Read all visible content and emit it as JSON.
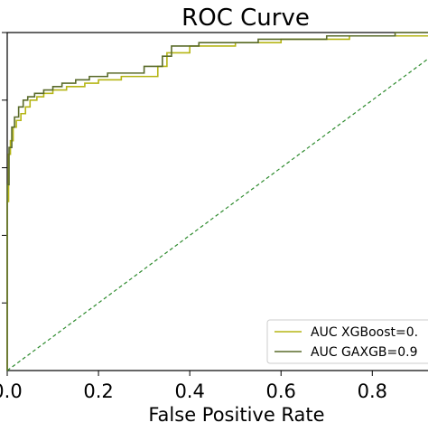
{
  "chart_data": {
    "type": "line",
    "title": "ROC Curve",
    "xlabel": "False Positive Rate",
    "ylabel": "",
    "xlim": [
      0.0,
      0.93
    ],
    "ylim": [
      0.0,
      1.0
    ],
    "x_ticks": [
      0.0,
      0.2,
      0.4,
      0.6,
      0.8
    ],
    "x_tick_labels": [
      "0.0",
      "0.2",
      "0.4",
      "0.6",
      "0.8"
    ],
    "y_ticks": [
      0.2,
      0.4,
      0.6,
      0.8,
      1.0
    ],
    "grid": false,
    "legend_position": "lower-right",
    "series": [
      {
        "name": "AUC XGBoost=0.",
        "color": "#b5b515",
        "x": [
          0.0,
          0.0,
          0.003,
          0.003,
          0.007,
          0.007,
          0.013,
          0.013,
          0.02,
          0.02,
          0.03,
          0.03,
          0.04,
          0.04,
          0.05,
          0.05,
          0.065,
          0.065,
          0.08,
          0.08,
          0.1,
          0.1,
          0.13,
          0.13,
          0.17,
          0.17,
          0.2,
          0.2,
          0.25,
          0.25,
          0.33,
          0.33,
          0.35,
          0.35,
          0.4,
          0.4,
          0.5,
          0.5,
          0.6,
          0.6,
          0.75,
          0.75,
          0.93
        ],
        "y": [
          0.0,
          0.5,
          0.5,
          0.64,
          0.64,
          0.68,
          0.68,
          0.72,
          0.72,
          0.74,
          0.74,
          0.76,
          0.76,
          0.78,
          0.78,
          0.8,
          0.8,
          0.81,
          0.81,
          0.82,
          0.82,
          0.83,
          0.83,
          0.84,
          0.84,
          0.85,
          0.85,
          0.86,
          0.86,
          0.87,
          0.87,
          0.9,
          0.9,
          0.94,
          0.94,
          0.96,
          0.96,
          0.97,
          0.97,
          0.98,
          0.98,
          0.99,
          0.99
        ]
      },
      {
        "name": "AUC GAXGB=0.9",
        "color": "#5a6b2a",
        "x": [
          0.0,
          0.0,
          0.004,
          0.004,
          0.01,
          0.01,
          0.016,
          0.016,
          0.025,
          0.025,
          0.035,
          0.035,
          0.045,
          0.045,
          0.06,
          0.06,
          0.08,
          0.08,
          0.1,
          0.1,
          0.12,
          0.12,
          0.15,
          0.15,
          0.18,
          0.18,
          0.22,
          0.22,
          0.3,
          0.3,
          0.34,
          0.34,
          0.36,
          0.36,
          0.42,
          0.42,
          0.55,
          0.55,
          0.7,
          0.7,
          0.85,
          0.85,
          0.93
        ],
        "y": [
          0.0,
          0.55,
          0.55,
          0.66,
          0.66,
          0.72,
          0.72,
          0.75,
          0.75,
          0.78,
          0.78,
          0.8,
          0.8,
          0.81,
          0.81,
          0.82,
          0.82,
          0.83,
          0.83,
          0.84,
          0.84,
          0.85,
          0.85,
          0.86,
          0.86,
          0.87,
          0.87,
          0.88,
          0.88,
          0.9,
          0.9,
          0.93,
          0.93,
          0.96,
          0.96,
          0.97,
          0.97,
          0.98,
          0.98,
          0.99,
          0.99,
          1.0,
          1.0
        ]
      },
      {
        "name": "",
        "color": "#2e8b2e",
        "style": "dashed",
        "x": [
          0.0,
          0.93
        ],
        "y": [
          0.0,
          0.93
        ]
      }
    ]
  }
}
